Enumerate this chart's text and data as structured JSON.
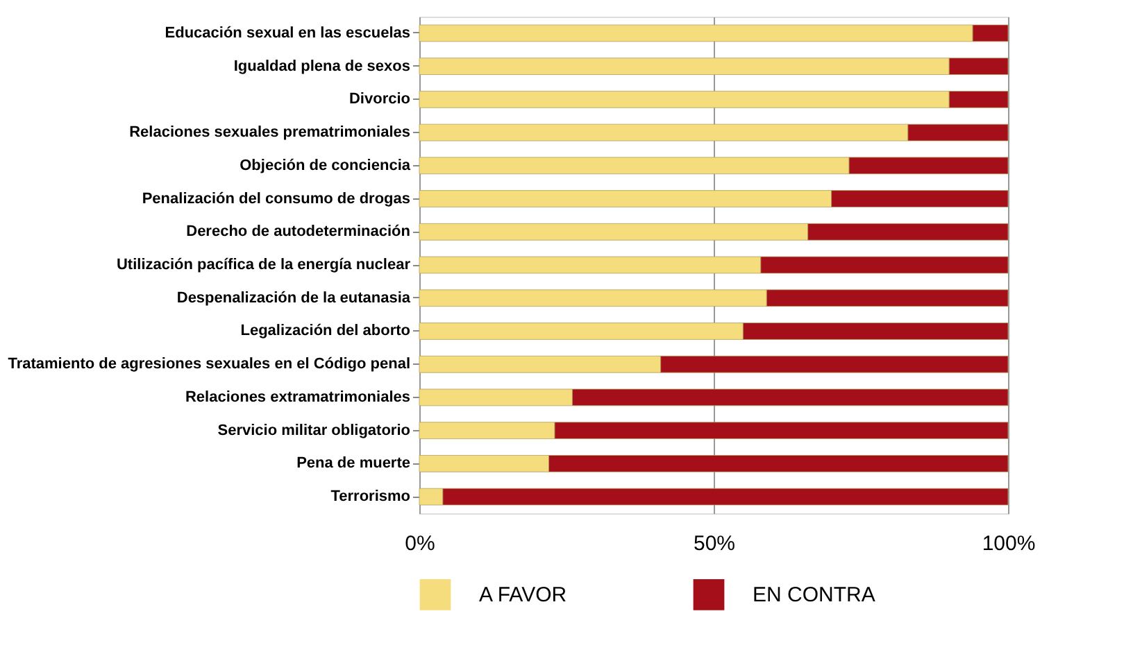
{
  "chart_data": {
    "type": "bar",
    "orientation": "horizontal",
    "stacked": true,
    "categories": [
      "Educación sexual en las escuelas",
      "Igualdad plena de sexos",
      "Divorcio",
      "Relaciones sexuales prematrimoniales",
      "Objeción de conciencia",
      "Penalización del consumo de drogas",
      "Derecho de autodeterminación",
      "Utilización pacífica de la energía nuclear",
      "Despenalización de la eutanasia",
      "Legalización del aborto",
      "Tratamiento de agresiones sexuales en el Código penal",
      "Relaciones extramatrimoniales",
      "Servicio militar obligatorio",
      "Pena de muerte",
      "Terrorismo"
    ],
    "series": [
      {
        "name": "A FAVOR",
        "color": "#f5dc7d",
        "values": [
          94,
          90,
          90,
          83,
          73,
          70,
          66,
          58,
          59,
          55,
          41,
          26,
          23,
          22,
          4
        ]
      },
      {
        "name": "EN CONTRA",
        "color": "#a50f1a",
        "values": [
          6,
          10,
          10,
          17,
          27,
          30,
          34,
          42,
          41,
          45,
          59,
          74,
          77,
          78,
          96
        ]
      }
    ],
    "xlim": [
      0,
      100
    ],
    "xticks": [
      {
        "value": 0,
        "label": "0%"
      },
      {
        "value": 50,
        "label": "50%"
      },
      {
        "value": 100,
        "label": "100%"
      }
    ],
    "grid": "x",
    "legend": "bottom"
  }
}
